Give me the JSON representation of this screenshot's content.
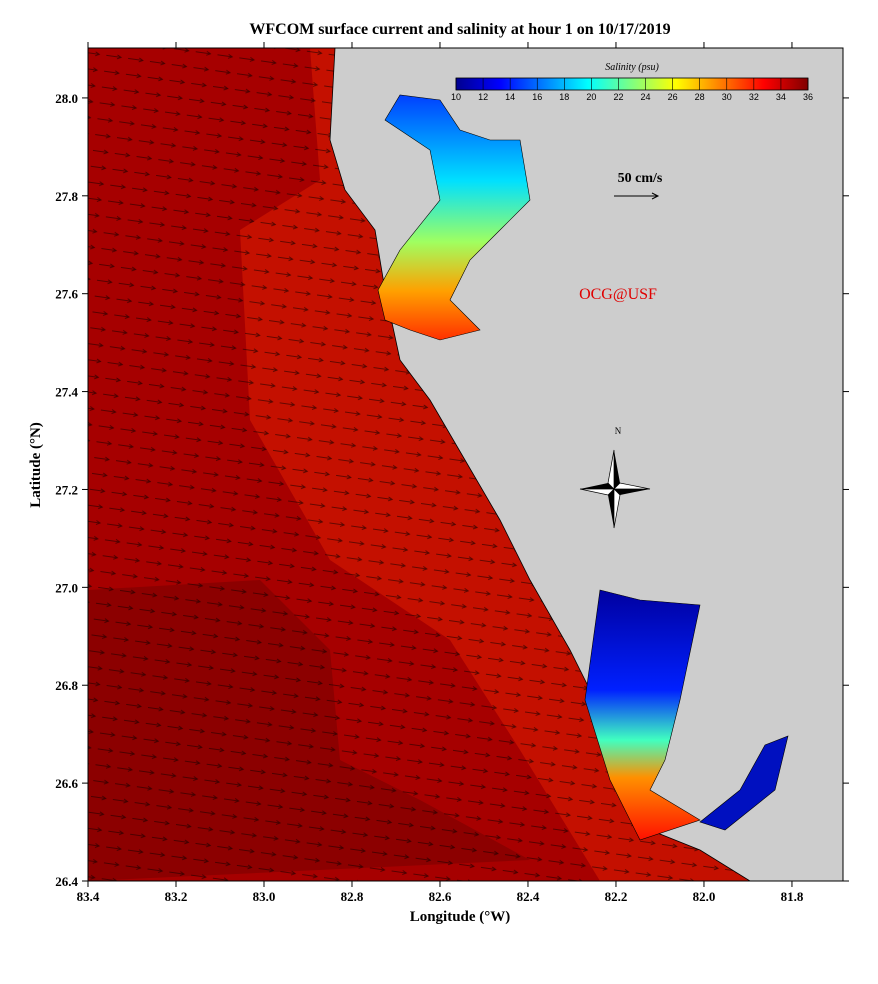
{
  "map": {
    "title": "WFCOM surface current and salinity at hour 1 on 10/17/2019",
    "xlabel": "Longitude (°W)",
    "ylabel": "Latitude (°N)",
    "xlim": [
      83.4,
      81.684
    ],
    "ylim": [
      26.4,
      28.102
    ],
    "xticks": [
      83.4,
      83.2,
      {
        "value": 83,
        "label": "83.0"
      },
      82.8,
      82.6,
      82.4,
      82.2,
      {
        "value": 82,
        "label": "82.0"
      },
      81.8
    ],
    "yticks": [
      26.4,
      26.6,
      26.8,
      {
        "value": 27,
        "label": "27.0"
      },
      27.2,
      27.4,
      27.6,
      27.8,
      {
        "value": 28,
        "label": "28.0"
      }
    ],
    "colorbar": {
      "title": "Salinity (psu)",
      "lim": [
        10,
        36
      ],
      "ticks": [
        10,
        12,
        14,
        16,
        18,
        20,
        22,
        24,
        26,
        28,
        30,
        32,
        34,
        36
      ],
      "colors": [
        "#00008f",
        "#0000ff",
        "#0080ff",
        "#00ffff",
        "#80ff80",
        "#ffff00",
        "#ff8000",
        "#ff0000",
        "#800000"
      ]
    },
    "scale_label": "50 cm/s",
    "credit": "OCG@USF",
    "north_label": "N"
  }
}
